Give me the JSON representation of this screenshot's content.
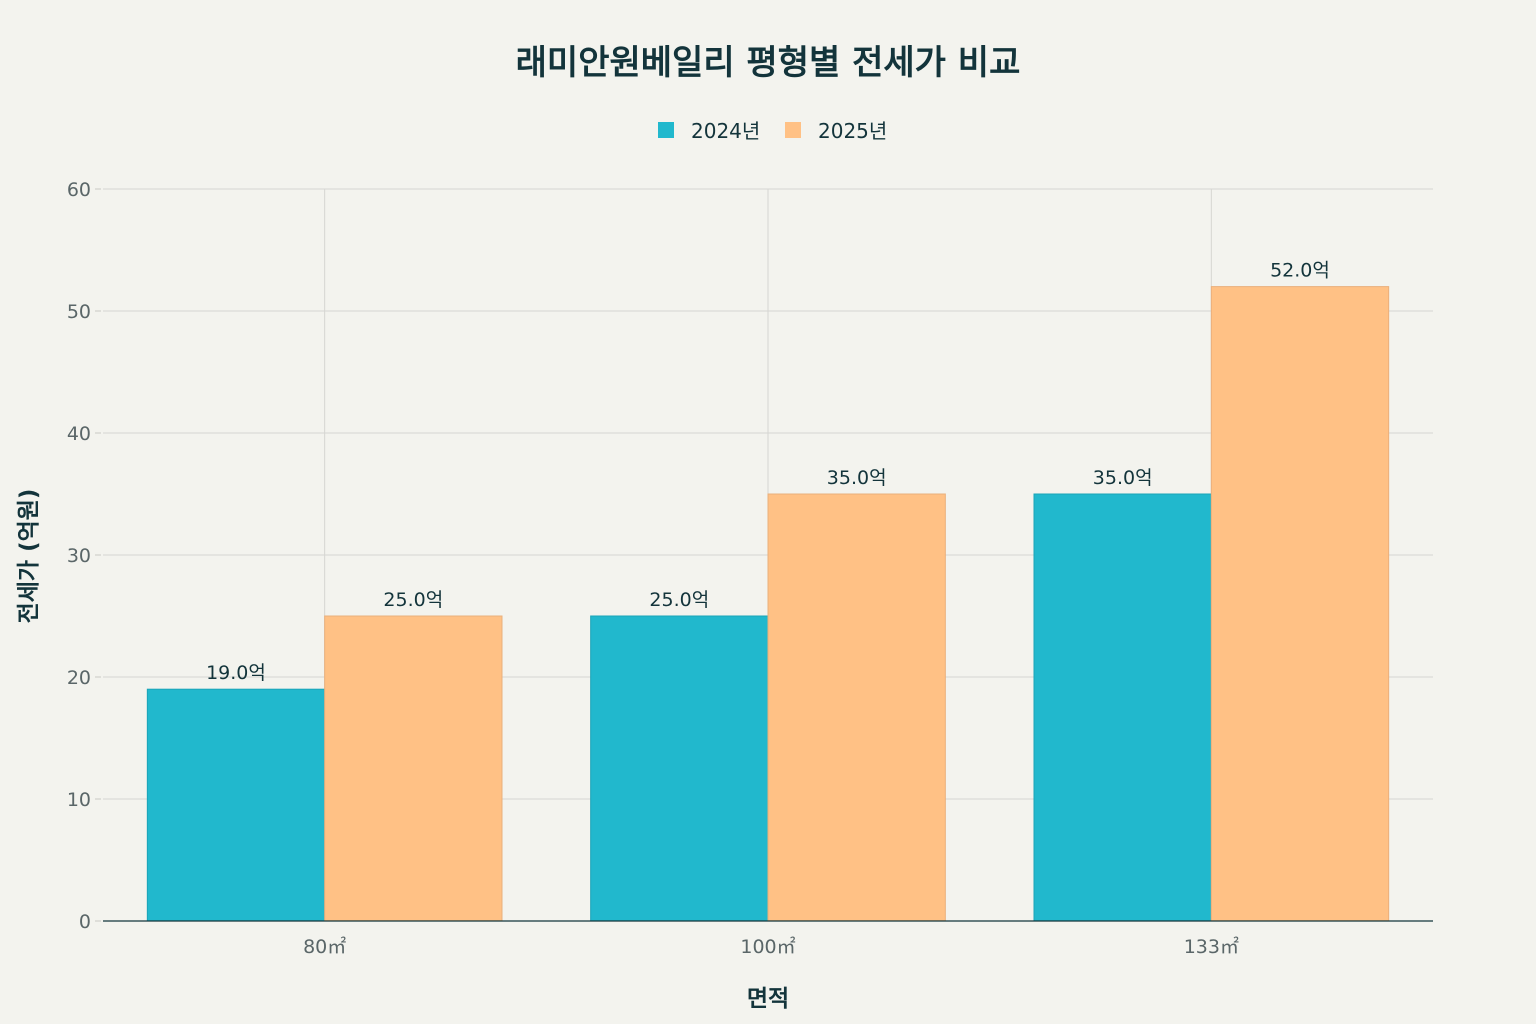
{
  "chart_data": {
    "type": "bar",
    "title": "래미안원베일리 평형별 전세가 비교",
    "xlabel": "면적",
    "ylabel": "전세가 (억원)",
    "categories": [
      "80㎡",
      "100㎡",
      "133㎡"
    ],
    "series": [
      {
        "name": "2024년",
        "color": "#21b8cd",
        "values": [
          19.0,
          25.0,
          35.0
        ],
        "labels": [
          "19.0억",
          "25.0억",
          "35.0억"
        ]
      },
      {
        "name": "2025년",
        "color": "#ffc185",
        "values": [
          25.0,
          35.0,
          52.0
        ],
        "labels": [
          "25.0억",
          "35.0억",
          "52.0억"
        ]
      }
    ],
    "ylim": [
      0,
      60
    ],
    "yticks": [
      "0",
      "10",
      "20",
      "30",
      "40",
      "50",
      "60"
    ],
    "grid": true,
    "legend_position": "top-center"
  }
}
